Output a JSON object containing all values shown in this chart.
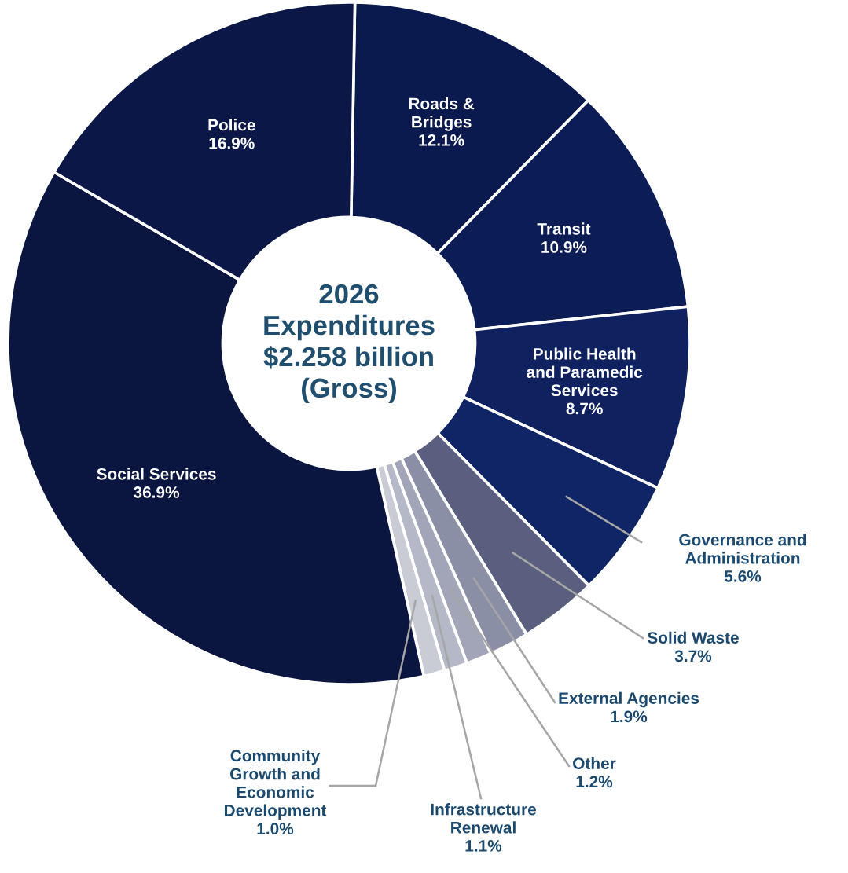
{
  "chart_data": {
    "type": "donut",
    "title": "2026\nExpenditures\n$2.258 billion\n(Gross)",
    "categories": [
      "Roads &\nBridges",
      "Transit",
      "Public Health\nand Paramedic\nServices",
      "Governance and\nAdministration",
      "Solid Waste",
      "External Agencies",
      "Other",
      "Infrastructure\nRenewal",
      "Community\nGrowth and\nEconomic\nDevelopment",
      "Social Services",
      "Police"
    ],
    "values": [
      12.1,
      10.9,
      8.7,
      5.6,
      3.7,
      1.9,
      1.2,
      1.1,
      1.0,
      36.9,
      16.9
    ],
    "value_labels": [
      "12.1%",
      "10.9%",
      "8.7%",
      "5.6%",
      "3.7%",
      "1.9%",
      "1.2%",
      "1.1%",
      "1.0%",
      "36.9%",
      "16.9%"
    ],
    "colors": [
      "#0b1a4e",
      "#0c1d56",
      "#0f215e",
      "#0f2566",
      "#5b5f7f",
      "#8b8fa6",
      "#a2a5b8",
      "#b5b8c7",
      "#c9cbd5",
      "#0a1540",
      "#0b1847"
    ]
  }
}
